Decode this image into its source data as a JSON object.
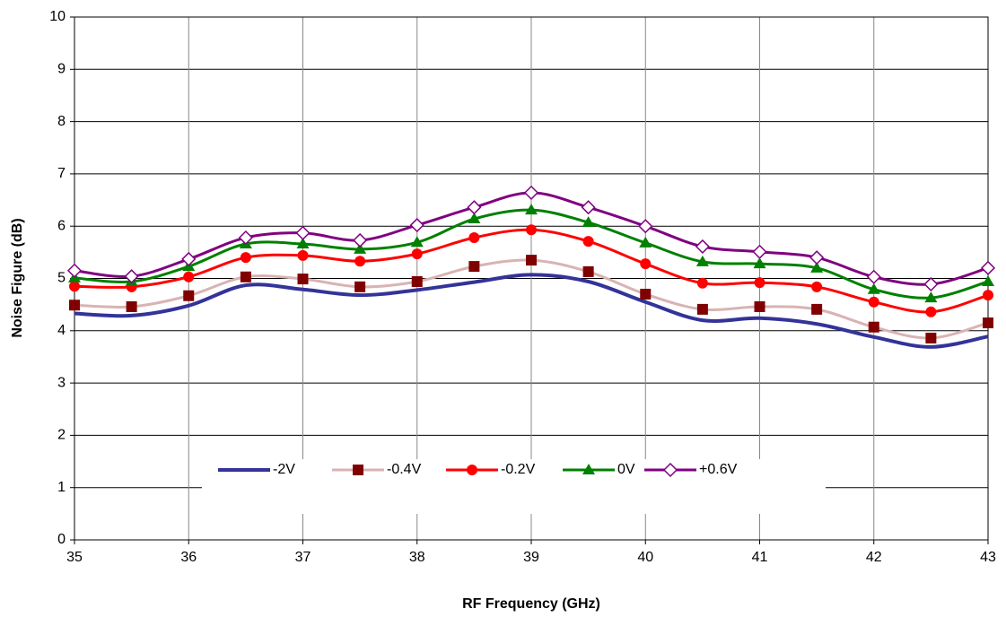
{
  "chart_data": {
    "type": "line",
    "x_label": "RF Frequency (GHz)",
    "y_label": "Noise Figure  (dB)",
    "x": [
      35,
      35.5,
      36,
      36.5,
      37,
      37.5,
      38,
      38.5,
      39,
      39.5,
      40,
      40.5,
      41,
      41.5,
      42,
      42.5,
      43
    ],
    "series": [
      {
        "name": "-2V",
        "color": "#333399",
        "marker": "none",
        "values": [
          4.33,
          4.29,
          4.48,
          4.87,
          4.79,
          4.68,
          4.78,
          4.93,
          5.07,
          4.94,
          4.55,
          4.2,
          4.24,
          4.13,
          3.88,
          3.69,
          3.89
        ]
      },
      {
        "name": "-0.4V",
        "color": "#d9b3b3",
        "marker_color": "#800000",
        "marker": "square",
        "values": [
          4.49,
          4.46,
          4.67,
          5.03,
          4.99,
          4.84,
          4.94,
          5.23,
          5.35,
          5.13,
          4.7,
          4.41,
          4.46,
          4.41,
          4.07,
          3.86,
          4.15
        ]
      },
      {
        "name": "-0.2V",
        "color": "#ff0000",
        "marker_color": "#ff0000",
        "marker": "circle",
        "values": [
          4.85,
          4.84,
          5.03,
          5.4,
          5.44,
          5.33,
          5.47,
          5.78,
          5.93,
          5.71,
          5.28,
          4.91,
          4.92,
          4.84,
          4.55,
          4.36,
          4.68
        ]
      },
      {
        "name": "0V",
        "color": "#008000",
        "marker_color": "#008000",
        "marker": "triangle",
        "values": [
          5.01,
          4.94,
          5.23,
          5.66,
          5.66,
          5.56,
          5.69,
          6.14,
          6.31,
          6.07,
          5.68,
          5.32,
          5.28,
          5.2,
          4.79,
          4.63,
          4.94
        ]
      },
      {
        "name": "+0.6V",
        "color": "#800080",
        "marker_color": "#800080",
        "marker": "diamond-open",
        "values": [
          5.15,
          5.04,
          5.37,
          5.78,
          5.87,
          5.73,
          6.02,
          6.36,
          6.64,
          6.36,
          6.0,
          5.61,
          5.51,
          5.4,
          5.03,
          4.89,
          5.2
        ]
      }
    ],
    "xlim": [
      35,
      43
    ],
    "xticks": [
      35,
      36,
      37,
      38,
      39,
      40,
      41,
      42,
      43
    ],
    "ylim": [
      0,
      10
    ],
    "yticks": [
      0,
      1,
      2,
      3,
      4,
      5,
      6,
      7,
      8,
      9,
      10
    ],
    "grid": true,
    "legend": "bottom"
  }
}
